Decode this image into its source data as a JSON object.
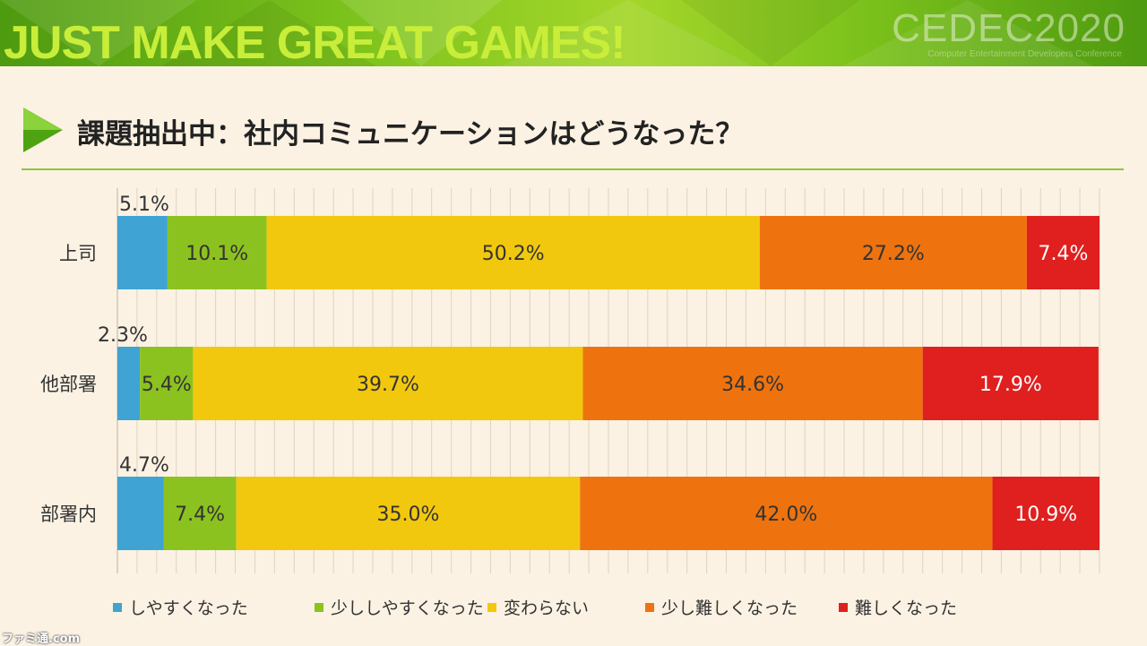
{
  "header": {
    "tagline": "JUST MAKE GREAT GAMES!",
    "brand": "CEDEC2020",
    "brand_sub": "Computer Entertainment Developers Conference"
  },
  "slide": {
    "title": "課題抽出中：社内コミュニケーションはどうなった？"
  },
  "chart_data": {
    "type": "bar",
    "orientation": "horizontal",
    "stacked": "100%",
    "categories": [
      "上司",
      "他部署",
      "部署内"
    ],
    "series": [
      {
        "name": "しやすくなった",
        "color": "#3fa3d4",
        "values": [
          5.1,
          2.3,
          4.7
        ]
      },
      {
        "name": "少ししやすくなった",
        "color": "#8cc21f",
        "values": [
          10.1,
          5.4,
          7.4
        ]
      },
      {
        "name": "変わらない",
        "color": "#f2c80f",
        "values": [
          50.2,
          39.7,
          35.0
        ]
      },
      {
        "name": "少し難しくなった",
        "color": "#ee730f",
        "values": [
          27.2,
          34.6,
          42.0
        ]
      },
      {
        "name": "難しくなった",
        "color": "#e01f1f",
        "values": [
          7.4,
          17.9,
          10.9
        ]
      }
    ],
    "data_labels": [
      [
        "5.1%",
        "10.1%",
        "50.2%",
        "27.2%",
        "7.4%"
      ],
      [
        "2.3%",
        "5.4%",
        "39.7%",
        "34.6%",
        "17.9%"
      ],
      [
        "4.7%",
        "7.4%",
        "35.0%",
        "42.0%",
        "10.9%"
      ]
    ],
    "xlim": [
      0,
      100
    ],
    "grid": true,
    "legend_position": "bottom"
  },
  "watermark": "ファミ通.com"
}
